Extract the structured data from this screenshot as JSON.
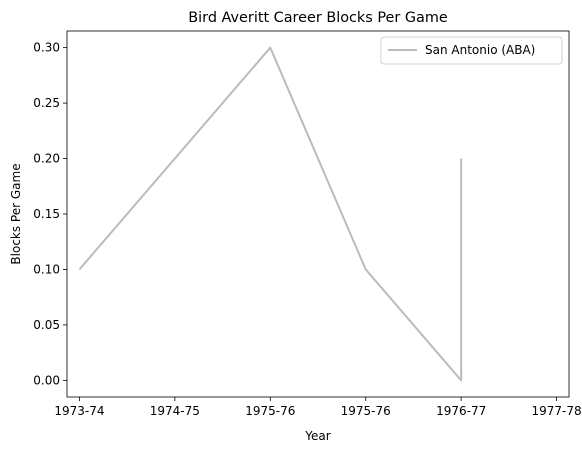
{
  "chart_data": {
    "type": "line",
    "title": "Bird Averitt Career Blocks Per Game",
    "xlabel": "Year",
    "ylabel": "Blocks Per Game",
    "x_tick_labels": [
      "1973-74",
      "1974-75",
      "1975-76",
      "1975-76",
      "1976-77",
      "1977-78"
    ],
    "x_range": [
      -0.13,
      5.13
    ],
    "ylim": [
      -0.015,
      0.315
    ],
    "y_ticks": [
      "0.00",
      "0.05",
      "0.10",
      "0.15",
      "0.20",
      "0.25",
      "0.30"
    ],
    "grid": false,
    "legend_position": "top-right",
    "series": [
      {
        "name": "San Antonio (ABA)",
        "color": "#bbbbbb",
        "x": [
          0,
          2,
          3,
          4,
          4
        ],
        "y": [
          0.1,
          0.3,
          0.1,
          0.0,
          0.2
        ]
      }
    ]
  }
}
